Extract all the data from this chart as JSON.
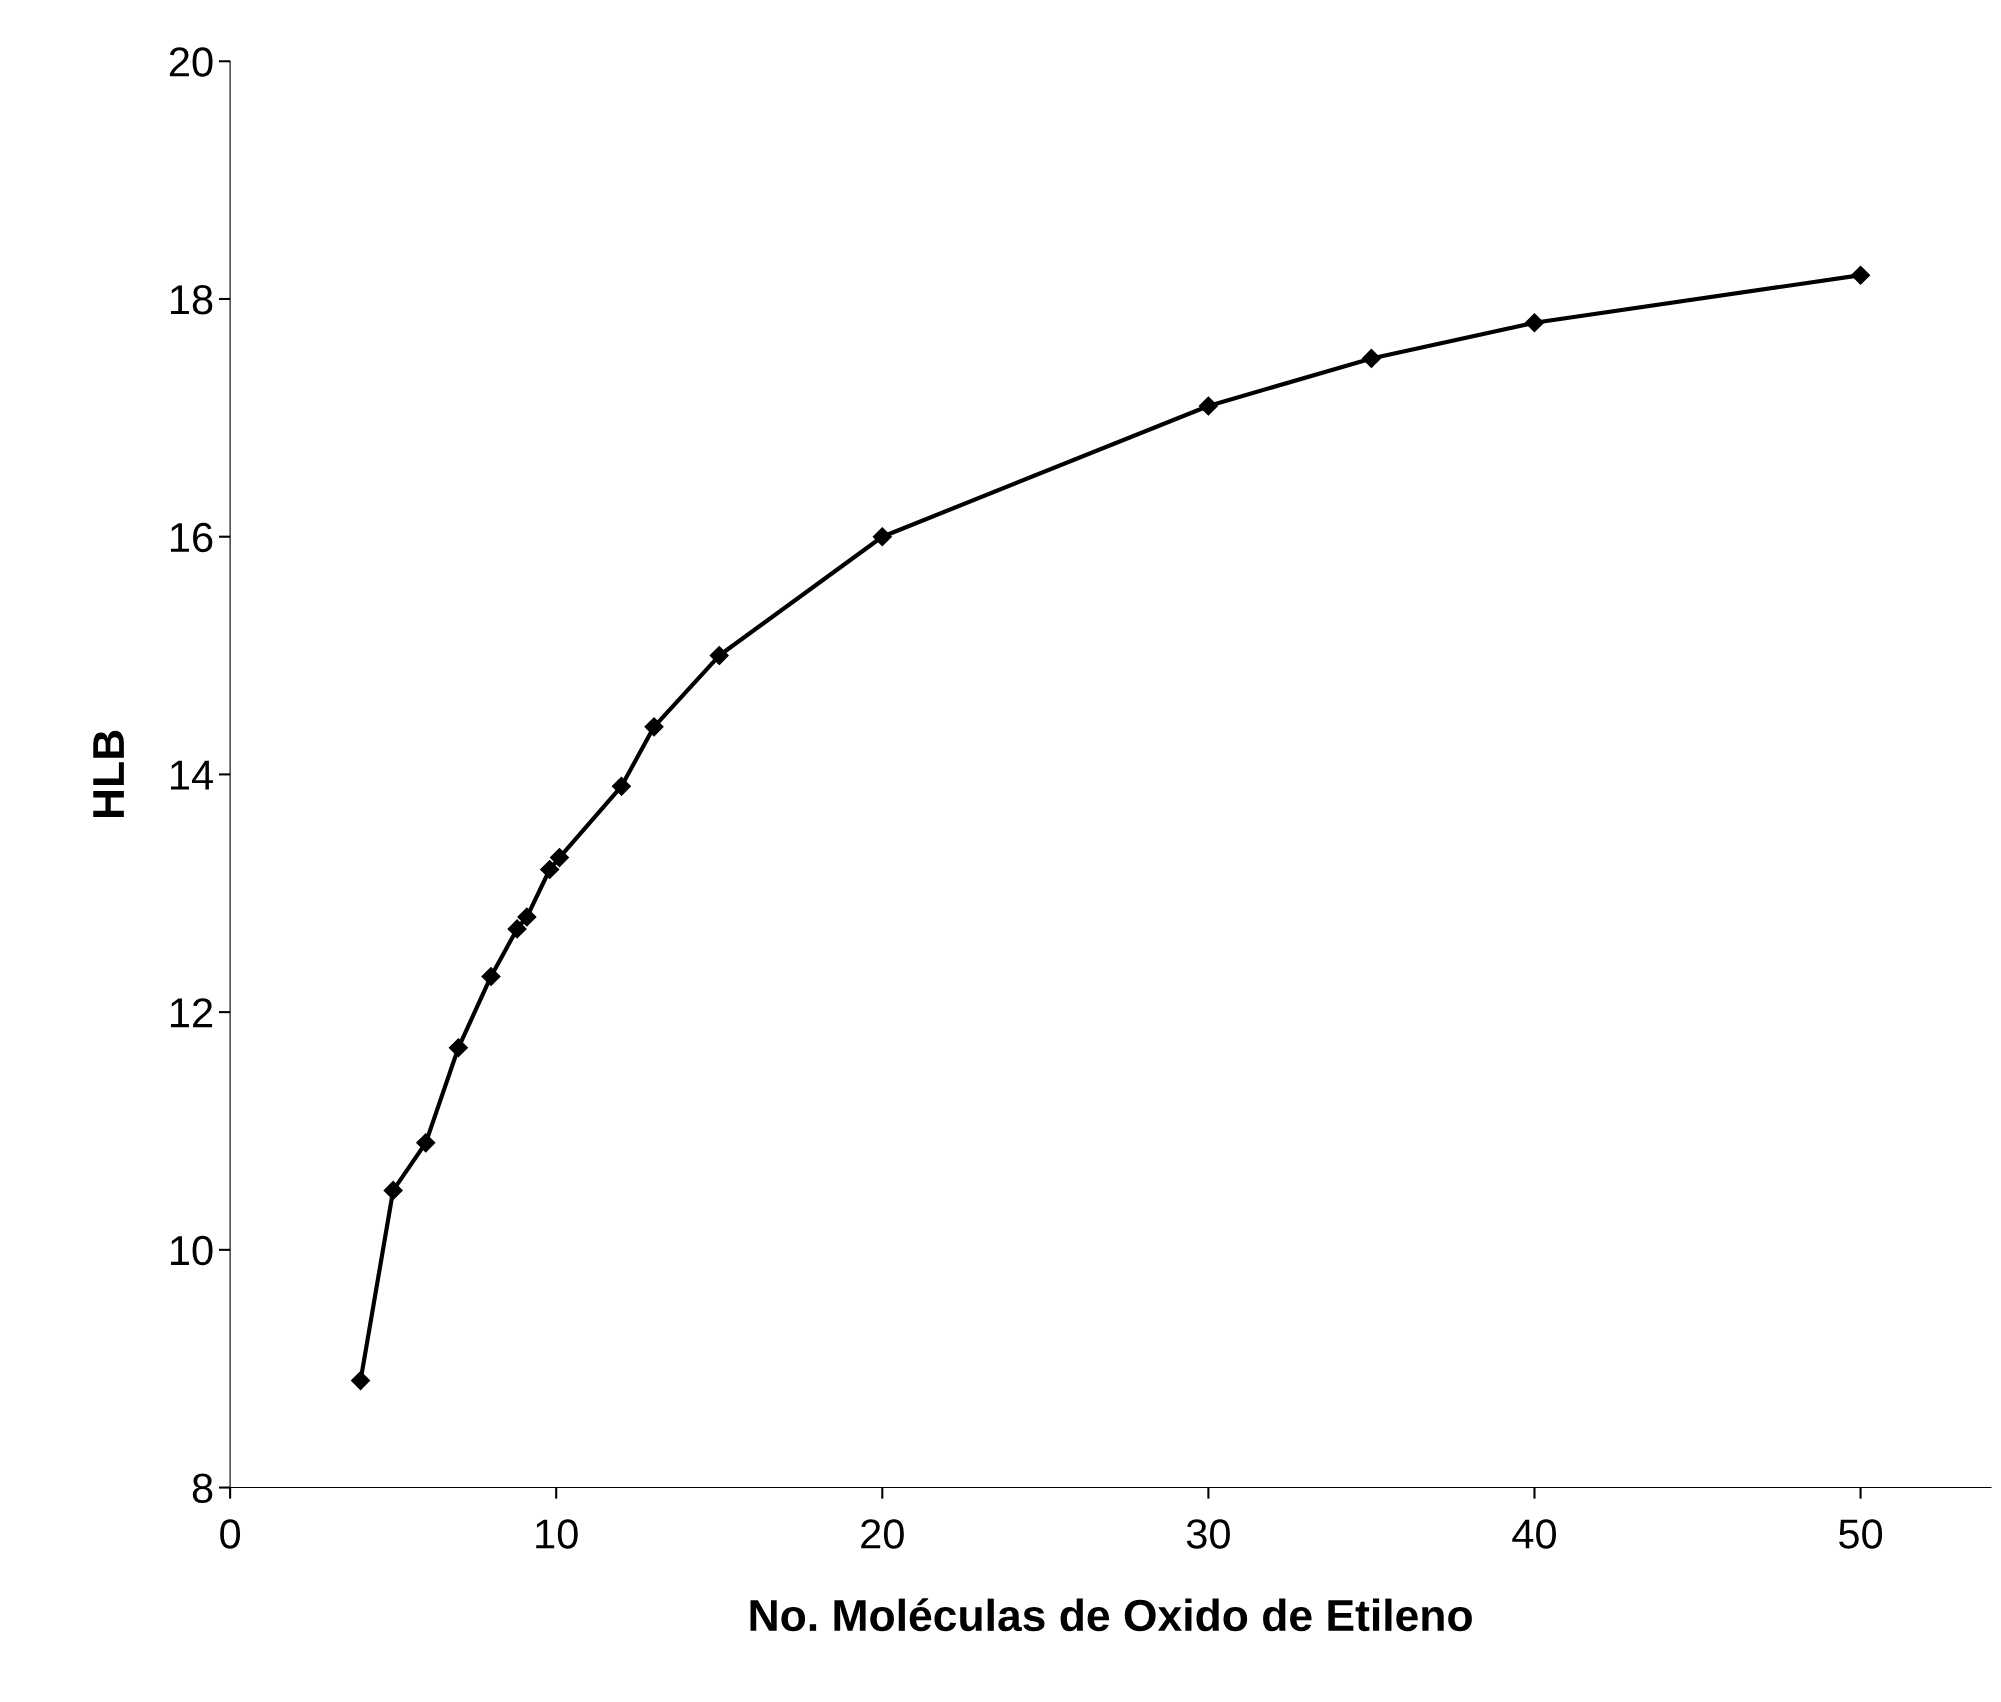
{
  "chart_data": {
    "type": "line",
    "xlabel": "No. Moléculas de Oxido de Etileno",
    "ylabel": "HLB",
    "x": [
      4,
      5,
      6,
      7,
      8,
      8.8,
      9.1,
      9.8,
      10.1,
      12,
      13,
      15,
      20,
      30,
      35,
      40,
      50
    ],
    "series": [
      {
        "color": "#000000",
        "values": [
          8.9,
          10.5,
          10.9,
          11.7,
          12.3,
          12.7,
          12.8,
          13.2,
          13.3,
          13.9,
          14.4,
          15.0,
          16.0,
          17.1,
          17.5,
          17.8,
          18.2
        ]
      }
    ],
    "xlim": [
      0,
      54
    ],
    "xticks": [
      0,
      10,
      20,
      30,
      40,
      50
    ],
    "ylim": [
      8,
      20
    ],
    "yticks": [
      8,
      10,
      12,
      14,
      16,
      18,
      20
    ],
    "marker": "diamond",
    "line_style": "solid",
    "grid": false,
    "legend": false
  }
}
